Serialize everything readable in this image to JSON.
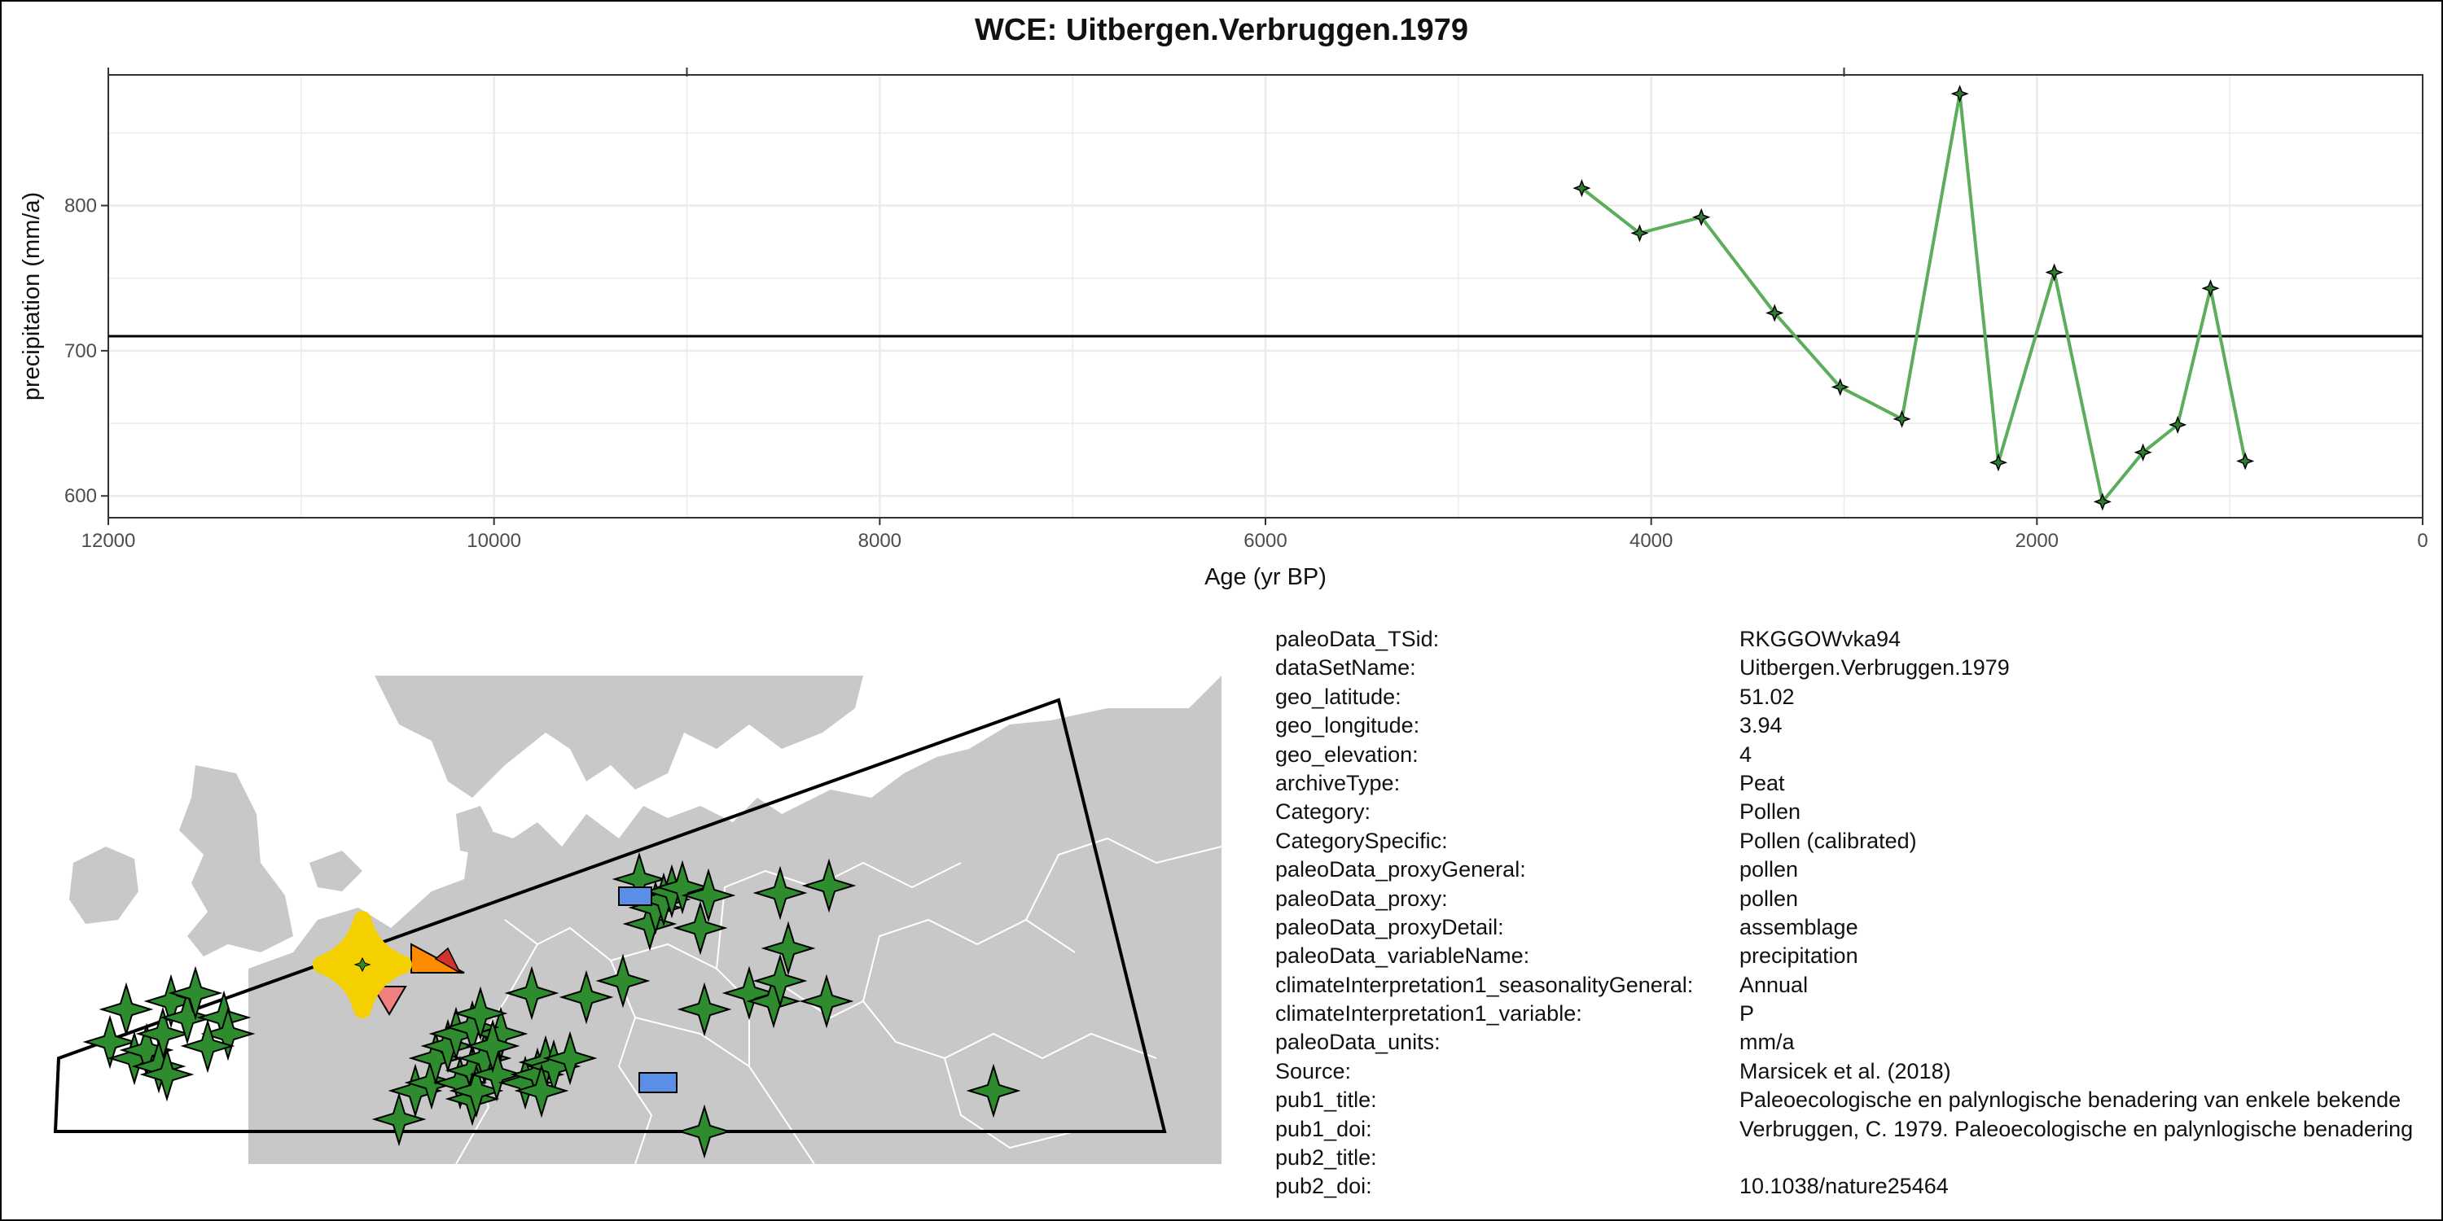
{
  "chart_data": {
    "type": "line",
    "title": "WCE: Uitbergen.Verbruggen.1979",
    "xlabel": "Age (yr BP)",
    "ylabel": "precipitation (mm/a)",
    "xlim": [
      12000,
      0
    ],
    "ylim": [
      585,
      890
    ],
    "x_ticks": [
      12000,
      10000,
      8000,
      6000,
      4000,
      2000,
      0
    ],
    "y_ticks": [
      600,
      700,
      800
    ],
    "reference_line_y": 710,
    "grid": true,
    "line_color": "#5cad5c",
    "marker_color": "#2e7d32",
    "series": [
      {
        "x": [
          4360,
          4060,
          3740,
          3360,
          3020,
          2700,
          2400,
          2200,
          1910,
          1660,
          1450,
          1270,
          1100,
          920
        ],
        "values": [
          812,
          781,
          792,
          726,
          675,
          653,
          877,
          623,
          754,
          596,
          630,
          649,
          743,
          624
        ]
      }
    ]
  },
  "map": {
    "land_color": "#c8c8c8",
    "border_color": "#ffffff",
    "highlight_color": "#f5d000",
    "site_color": "#2e8b2e",
    "site_icon": "four-point-star-icon",
    "other_icons": [
      "blue-rectangle-icon",
      "orange-triangle-icon",
      "pink-down-triangle-icon"
    ]
  },
  "metadata": [
    {
      "key": "paleoData_TSid:",
      "value": "RKGGOWvka94"
    },
    {
      "key": "dataSetName:",
      "value": "Uitbergen.Verbruggen.1979"
    },
    {
      "key": "geo_latitude:",
      "value": "51.02"
    },
    {
      "key": "geo_longitude:",
      "value": "3.94"
    },
    {
      "key": "geo_elevation:",
      "value": "4"
    },
    {
      "key": "archiveType:",
      "value": "Peat"
    },
    {
      "key": "Category:",
      "value": "Pollen"
    },
    {
      "key": "CategorySpecific:",
      "value": "Pollen (calibrated)"
    },
    {
      "key": "paleoData_proxyGeneral:",
      "value": "pollen"
    },
    {
      "key": "paleoData_proxy:",
      "value": "pollen"
    },
    {
      "key": "paleoData_proxyDetail:",
      "value": "assemblage"
    },
    {
      "key": "paleoData_variableName:",
      "value": "precipitation"
    },
    {
      "key": "climateInterpretation1_seasonalityGeneral:",
      "value": "Annual"
    },
    {
      "key": "climateInterpretation1_variable:",
      "value": "P"
    },
    {
      "key": "paleoData_units:",
      "value": "mm/a"
    },
    {
      "key": "Source:",
      "value": "Marsicek et al. (2018)"
    },
    {
      "key": "pub1_title:",
      "value": "Paleoecologische en palynlogische benadering van enkele bekende"
    },
    {
      "key": "pub1_doi:",
      "value": "Verbruggen, C. 1979. Paleoecologische en palynlogische benadering"
    },
    {
      "key": "pub2_title:",
      "value": ""
    },
    {
      "key": "pub2_doi:",
      "value": "10.1038/nature25464"
    }
  ]
}
